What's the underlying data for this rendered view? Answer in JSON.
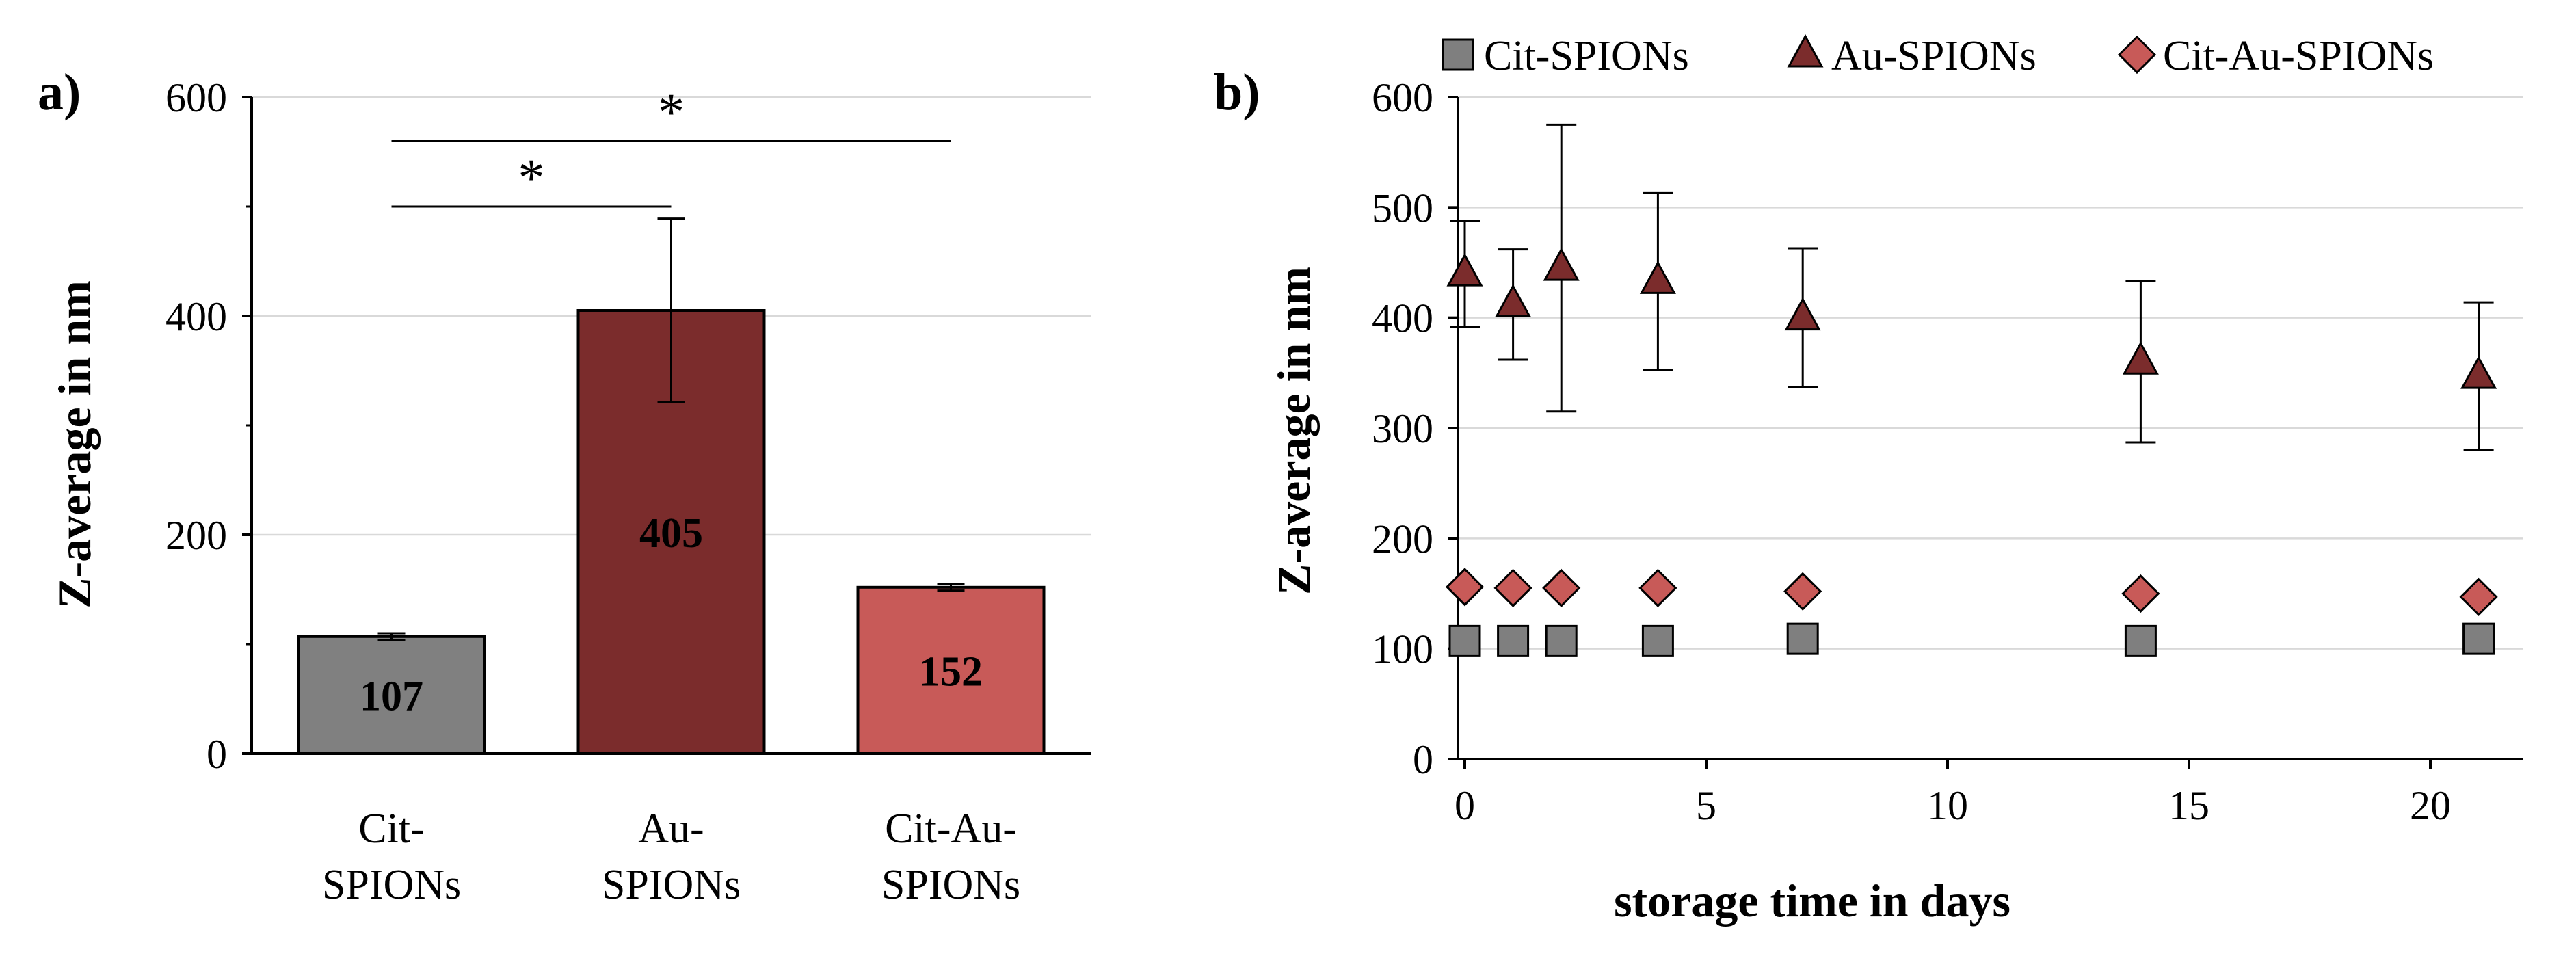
{
  "chart_data": [
    {
      "panel": "a)",
      "type": "bar",
      "ylabel": "Z-average in nm",
      "xlabel": "",
      "ylim": [
        0,
        600
      ],
      "yticks": [
        0,
        200,
        400,
        600
      ],
      "grid": true,
      "categories": [
        {
          "lines": [
            "Cit-",
            "SPIONs"
          ],
          "value": 107,
          "error": 3,
          "value_label": "107",
          "color": "#808080"
        },
        {
          "lines": [
            "Au-",
            "SPIONs"
          ],
          "value": 405,
          "error": 84,
          "value_label": "405",
          "color": "#7b2c2c"
        },
        {
          "lines": [
            "Cit-Au-",
            "SPIONs"
          ],
          "value": 152,
          "error": 3,
          "value_label": "152",
          "color": "#c85a58"
        }
      ],
      "significance": [
        {
          "from": 0,
          "to": 1,
          "y": 500,
          "label": "*"
        },
        {
          "from": 0,
          "to": 2,
          "y": 560,
          "label": "*"
        }
      ]
    },
    {
      "panel": "b)",
      "type": "scatter",
      "xlabel": "storage time in days",
      "ylabel": "Z-average in nm",
      "xlim": [
        0,
        22
      ],
      "ylim": [
        0,
        600
      ],
      "xticks": [
        0,
        5,
        10,
        15,
        20
      ],
      "yticks": [
        0,
        100,
        200,
        300,
        400,
        500,
        600
      ],
      "grid": true,
      "legend_position": "top",
      "series": [
        {
          "name": "Cit-SPIONs",
          "marker": "square",
          "color": "#7f7f7f",
          "x": [
            0,
            1,
            2,
            4,
            7,
            14,
            21
          ],
          "y": [
            107,
            107,
            107,
            107,
            109,
            107,
            109
          ],
          "err": [
            0,
            0,
            0,
            0,
            0,
            0,
            0
          ]
        },
        {
          "name": "Au-SPIONs",
          "marker": "triangle",
          "color": "#7b2c2c",
          "x": [
            0,
            1,
            2,
            4,
            7,
            14,
            21
          ],
          "y": [
            440,
            412,
            445,
            433,
            400,
            360,
            347
          ],
          "err": [
            48,
            50,
            130,
            80,
            63,
            73,
            67
          ]
        },
        {
          "name": "Cit-Au-SPIONs",
          "marker": "diamond",
          "color": "#c85a58",
          "x": [
            0,
            1,
            2,
            4,
            7,
            14,
            21
          ],
          "y": [
            156,
            155,
            155,
            155,
            152,
            150,
            147
          ],
          "err": [
            0,
            0,
            0,
            0,
            0,
            0,
            0
          ]
        }
      ]
    }
  ]
}
